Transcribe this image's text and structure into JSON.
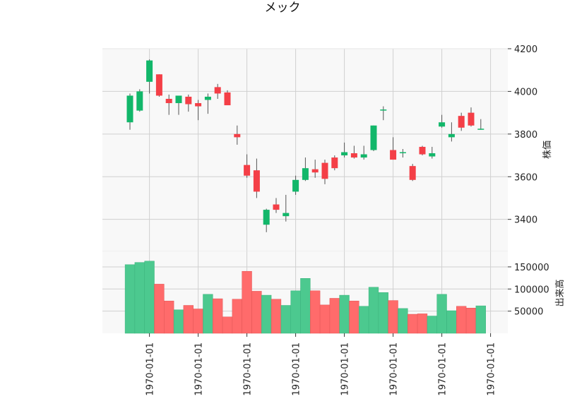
{
  "chart_data": {
    "type": "candlestick",
    "title": "メック",
    "colors": {
      "up": "#12b76a",
      "down": "#f43f47",
      "wick": "#555555",
      "volume_up": "#4cc98f",
      "volume_down": "#ff6b6b",
      "panel_bg": "#f8f8f8",
      "grid": "#d0d0d0"
    },
    "x_tick_labels": [
      "1970-01-01",
      "1970-01-01",
      "1970-01-01",
      "1970-01-01",
      "1970-01-01",
      "1970-01-01",
      "1970-01-01",
      "1970-01-01"
    ],
    "x_tick_indices": [
      2,
      7,
      12,
      17,
      22,
      27,
      32,
      37
    ],
    "price_panel": {
      "ylabel": "株価",
      "ylim": [
        3250,
        4200
      ],
      "y_ticks": [
        3400,
        3600,
        3800,
        4000,
        4200
      ],
      "y_tick_labels": [
        "3400",
        "3600",
        "3800",
        "4000",
        "4200"
      ],
      "grid": true
    },
    "volume_panel": {
      "ylabel": "出来高",
      "ylim": [
        0,
        185000
      ],
      "y_ticks": [
        50000,
        100000,
        150000
      ],
      "y_tick_labels": [
        "50000",
        "100000",
        "150000"
      ],
      "grid": true
    },
    "candles": [
      {
        "open": 3855,
        "high": 3990,
        "low": 3820,
        "close": 3980,
        "volume": 155000
      },
      {
        "open": 3910,
        "high": 4010,
        "low": 3905,
        "close": 4000,
        "volume": 160000
      },
      {
        "open": 4045,
        "high": 4150,
        "low": 3990,
        "close": 4145,
        "volume": 163000
      },
      {
        "open": 4080,
        "high": 4080,
        "low": 3975,
        "close": 3980,
        "volume": 111000
      },
      {
        "open": 3965,
        "high": 3985,
        "low": 3890,
        "close": 3945,
        "volume": 73000
      },
      {
        "open": 3945,
        "high": 3980,
        "low": 3890,
        "close": 3980,
        "volume": 53000
      },
      {
        "open": 3975,
        "high": 3985,
        "low": 3905,
        "close": 3940,
        "volume": 63000
      },
      {
        "open": 3945,
        "high": 3960,
        "low": 3865,
        "close": 3930,
        "volume": 55000
      },
      {
        "open": 3960,
        "high": 3990,
        "low": 3895,
        "close": 3975,
        "volume": 88000
      },
      {
        "open": 4020,
        "high": 4035,
        "low": 3965,
        "close": 3990,
        "volume": 78000
      },
      {
        "open": 3995,
        "high": 4005,
        "low": 3935,
        "close": 3935,
        "volume": 37000
      },
      {
        "open": 3800,
        "high": 3840,
        "low": 3750,
        "close": 3785,
        "volume": 77000
      },
      {
        "open": 3655,
        "high": 3705,
        "low": 3595,
        "close": 3605,
        "volume": 140000
      },
      {
        "open": 3630,
        "high": 3685,
        "low": 3500,
        "close": 3530,
        "volume": 95000
      },
      {
        "open": 3375,
        "high": 3450,
        "low": 3340,
        "close": 3445,
        "volume": 86000
      },
      {
        "open": 3470,
        "high": 3500,
        "low": 3430,
        "close": 3445,
        "volume": 77000
      },
      {
        "open": 3415,
        "high": 3515,
        "low": 3390,
        "close": 3430,
        "volume": 63000
      },
      {
        "open": 3530,
        "high": 3605,
        "low": 3515,
        "close": 3585,
        "volume": 96000
      },
      {
        "open": 3585,
        "high": 3690,
        "low": 3580,
        "close": 3640,
        "volume": 124000
      },
      {
        "open": 3635,
        "high": 3680,
        "low": 3595,
        "close": 3620,
        "volume": 96000
      },
      {
        "open": 3665,
        "high": 3680,
        "low": 3565,
        "close": 3590,
        "volume": 64000
      },
      {
        "open": 3690,
        "high": 3700,
        "low": 3630,
        "close": 3640,
        "volume": 79000
      },
      {
        "open": 3700,
        "high": 3760,
        "low": 3690,
        "close": 3715,
        "volume": 86000
      },
      {
        "open": 3710,
        "high": 3745,
        "low": 3685,
        "close": 3690,
        "volume": 73000
      },
      {
        "open": 3690,
        "high": 3745,
        "low": 3680,
        "close": 3705,
        "volume": 61000
      },
      {
        "open": 3725,
        "high": 3840,
        "low": 3720,
        "close": 3840,
        "volume": 104000
      },
      {
        "open": 3910,
        "high": 3930,
        "low": 3865,
        "close": 3915,
        "volume": 92000
      },
      {
        "open": 3725,
        "high": 3785,
        "low": 3680,
        "close": 3680,
        "volume": 74000
      },
      {
        "open": 3710,
        "high": 3730,
        "low": 3690,
        "close": 3715,
        "volume": 56000
      },
      {
        "open": 3650,
        "high": 3660,
        "low": 3580,
        "close": 3585,
        "volume": 43000
      },
      {
        "open": 3740,
        "high": 3745,
        "low": 3700,
        "close": 3705,
        "volume": 44000
      },
      {
        "open": 3695,
        "high": 3740,
        "low": 3685,
        "close": 3710,
        "volume": 39000
      },
      {
        "open": 3835,
        "high": 3890,
        "low": 3830,
        "close": 3855,
        "volume": 88000
      },
      {
        "open": 3785,
        "high": 3855,
        "low": 3765,
        "close": 3800,
        "volume": 51000
      },
      {
        "open": 3885,
        "high": 3900,
        "low": 3815,
        "close": 3830,
        "volume": 61000
      },
      {
        "open": 3900,
        "high": 3925,
        "low": 3835,
        "close": 3840,
        "volume": 57000
      },
      {
        "open": 3820,
        "high": 3870,
        "low": 3820,
        "close": 3825,
        "volume": 62000
      }
    ]
  }
}
